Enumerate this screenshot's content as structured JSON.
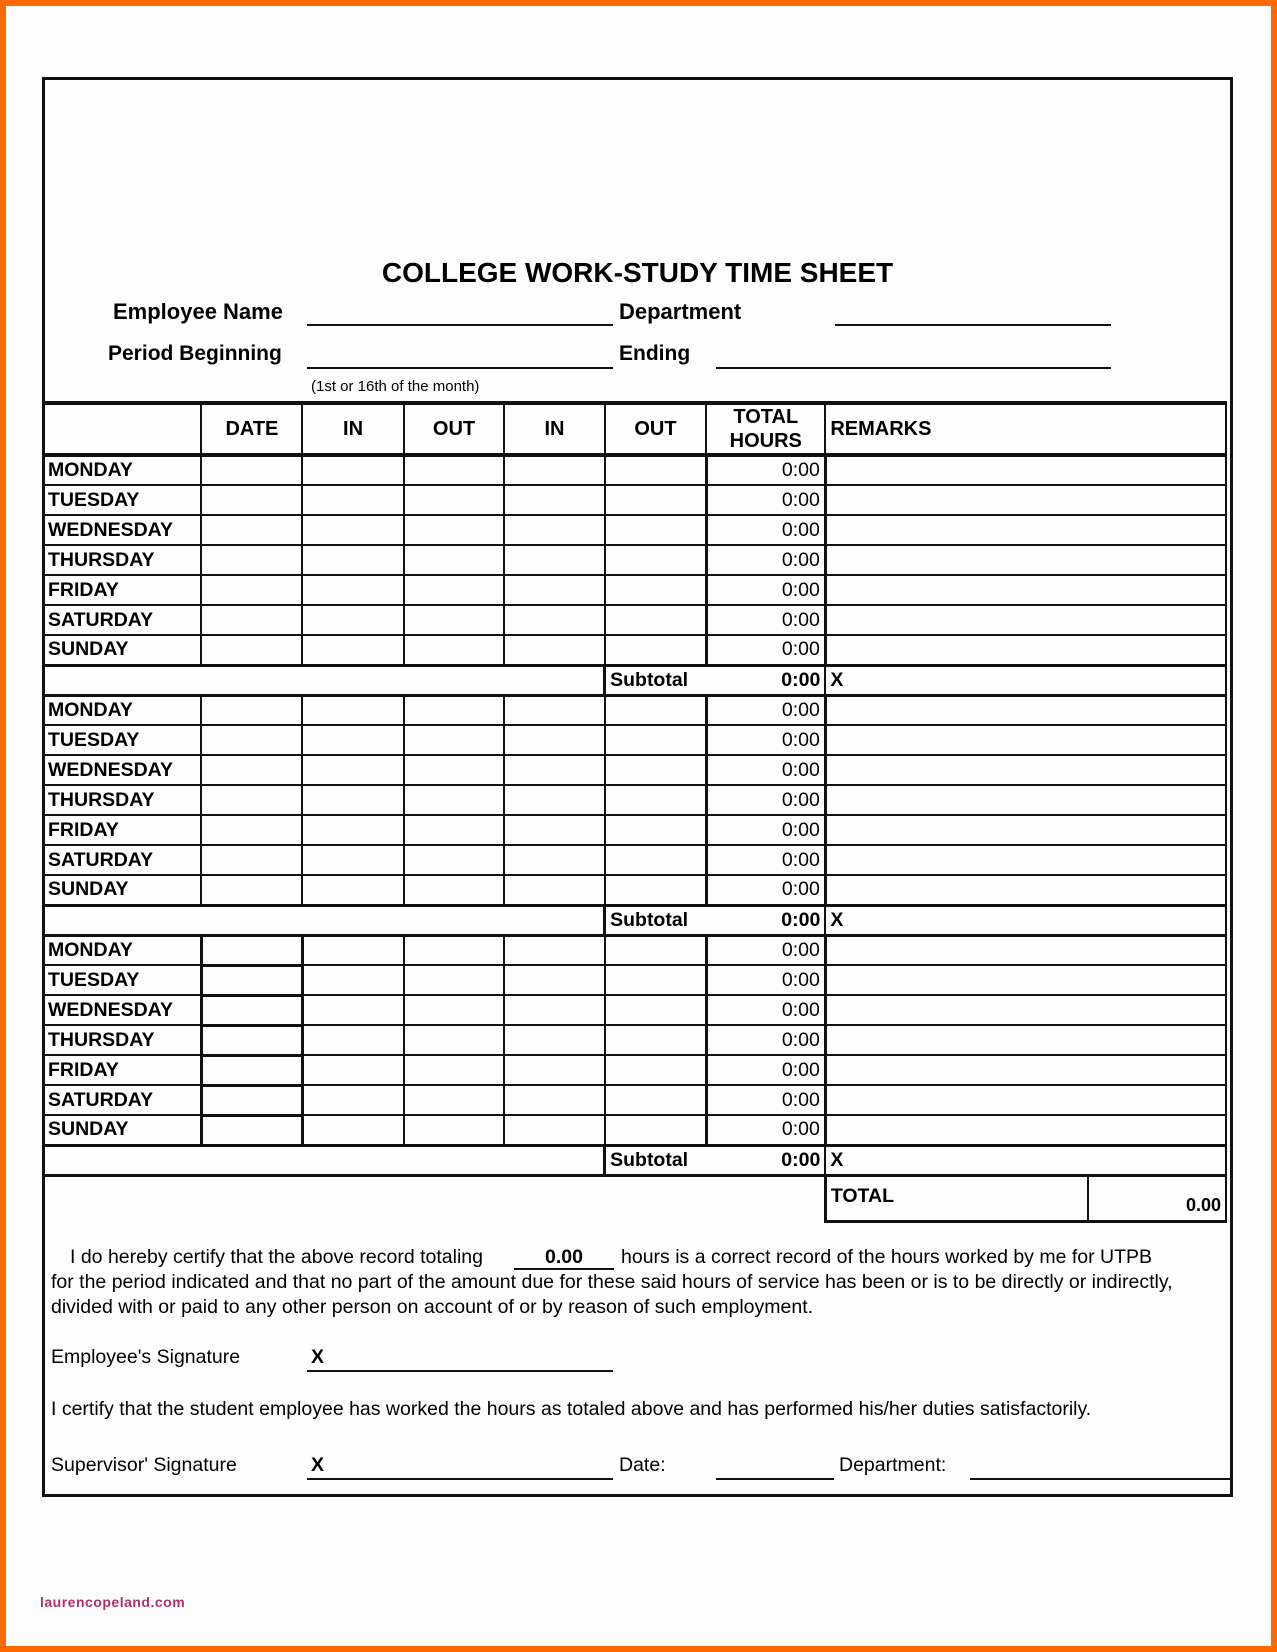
{
  "title": "COLLEGE WORK-STUDY TIME SHEET",
  "fields": {
    "employee_name": "Employee Name",
    "department": "Department",
    "period_beginning": "Period Beginning",
    "ending": "Ending",
    "period_note": "(1st or 16th of the month)"
  },
  "table": {
    "headers": [
      "",
      "DATE",
      "IN",
      "OUT",
      "IN",
      "OUT",
      "TOTAL HOURS",
      "REMARKS"
    ],
    "weeks": [
      {
        "days": [
          {
            "day": "MONDAY",
            "hours": "0:00"
          },
          {
            "day": "TUESDAY",
            "hours": "0:00"
          },
          {
            "day": "WEDNESDAY",
            "hours": "0:00"
          },
          {
            "day": "THURSDAY",
            "hours": "0:00"
          },
          {
            "day": "FRIDAY",
            "hours": "0:00"
          },
          {
            "day": "SATURDAY",
            "hours": "0:00"
          },
          {
            "day": "SUNDAY",
            "hours": "0:00"
          }
        ],
        "subtotal_label": "Subtotal",
        "subtotal": "0:00",
        "mark": "X"
      },
      {
        "days": [
          {
            "day": "MONDAY",
            "hours": "0:00"
          },
          {
            "day": "TUESDAY",
            "hours": "0:00"
          },
          {
            "day": "WEDNESDAY",
            "hours": "0:00"
          },
          {
            "day": "THURSDAY",
            "hours": "0:00"
          },
          {
            "day": "FRIDAY",
            "hours": "0:00"
          },
          {
            "day": "SATURDAY",
            "hours": "0:00"
          },
          {
            "day": "SUNDAY",
            "hours": "0:00"
          }
        ],
        "subtotal_label": "Subtotal",
        "subtotal": "0:00",
        "mark": "X"
      },
      {
        "days": [
          {
            "day": "MONDAY",
            "hours": "0:00"
          },
          {
            "day": "TUESDAY",
            "hours": "0:00"
          },
          {
            "day": "WEDNESDAY",
            "hours": "0:00"
          },
          {
            "day": "THURSDAY",
            "hours": "0:00"
          },
          {
            "day": "FRIDAY",
            "hours": "0:00"
          },
          {
            "day": "SATURDAY",
            "hours": "0:00"
          },
          {
            "day": "SUNDAY",
            "hours": "0:00"
          }
        ],
        "subtotal_label": "Subtotal",
        "subtotal": "0:00",
        "mark": "X"
      }
    ],
    "total_label": "TOTAL",
    "total": "0.00"
  },
  "certify": {
    "line1_a": "I do hereby certify that the above record totaling",
    "total": "0.00",
    "line1_b": "hours is a correct record of the hours worked by me for UTPB",
    "line2": "for the period indicated and that no part of the amount due for these said hours of service has been or is to be directly or indirectly,",
    "line3": "divided with or paid to any other person on account of or by reason of such employment.",
    "employee_signature": "Employee's Signature",
    "x_mark": "X",
    "supervisor_statement": "I certify that the student employee has worked the hours as totaled above and has performed his/her duties satisfactorily.",
    "supervisor_signature": "Supervisor' Signature",
    "date": "Date:",
    "department": "Department:"
  },
  "watermark": "laurencopeland.com",
  "colors": {
    "frame": "#ff6a00",
    "watermark": "#b0306a"
  }
}
